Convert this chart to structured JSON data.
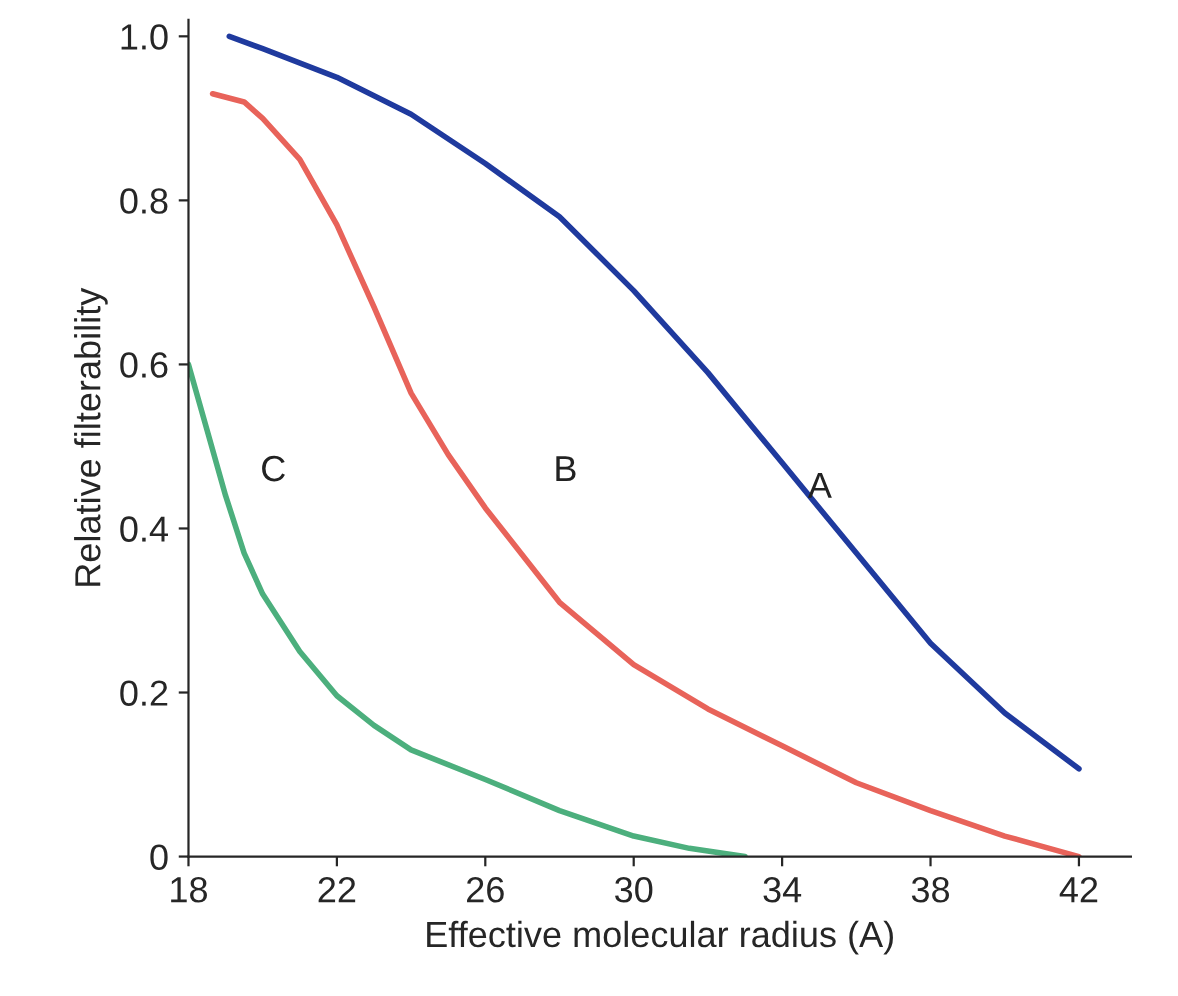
{
  "chart_data": {
    "type": "line",
    "xlabel": "Effective molecular radius (A)",
    "ylabel": "Relative filterability",
    "xlim": [
      18,
      43.4
    ],
    "ylim": [
      0,
      1.02
    ],
    "xticks": [
      18,
      22,
      26,
      30,
      34,
      38,
      42
    ],
    "yticks": [
      {
        "value": 0,
        "label": "0"
      },
      {
        "value": 0.2,
        "label": "0.2"
      },
      {
        "value": 0.4,
        "label": "0.4"
      },
      {
        "value": 0.6,
        "label": "0.6"
      },
      {
        "value": 0.8,
        "label": "0.8"
      },
      {
        "value": 1.0,
        "label": "1.0"
      }
    ],
    "grid": false,
    "legend": false,
    "marker": "none",
    "line_style": "solid",
    "series": [
      {
        "name": "A",
        "color": "#1f3a9e",
        "x": [
          19.1,
          20,
          22,
          24,
          26,
          28,
          30,
          32,
          34,
          36,
          38,
          40,
          42
        ],
        "values": [
          1.0,
          0.985,
          0.95,
          0.905,
          0.845,
          0.78,
          0.69,
          0.59,
          0.48,
          0.37,
          0.26,
          0.175,
          0.107
        ]
      },
      {
        "name": "B",
        "color": "#e8635a",
        "x": [
          18.65,
          19.5,
          20,
          21,
          22,
          23,
          24,
          25,
          26,
          28,
          30,
          32,
          34,
          36,
          38,
          40,
          42
        ],
        "values": [
          0.93,
          0.92,
          0.9,
          0.85,
          0.77,
          0.67,
          0.565,
          0.49,
          0.425,
          0.31,
          0.234,
          0.18,
          0.135,
          0.09,
          0.056,
          0.025,
          0
        ]
      },
      {
        "name": "C",
        "color": "#4caf7d",
        "x": [
          18,
          18.5,
          19,
          19.5,
          20,
          21,
          22,
          23,
          24,
          26,
          28,
          30,
          31.5,
          33
        ],
        "values": [
          0.6,
          0.52,
          0.44,
          0.37,
          0.32,
          0.25,
          0.196,
          0.16,
          0.13,
          0.094,
          0.056,
          0.025,
          0.01,
          0
        ]
      }
    ]
  }
}
